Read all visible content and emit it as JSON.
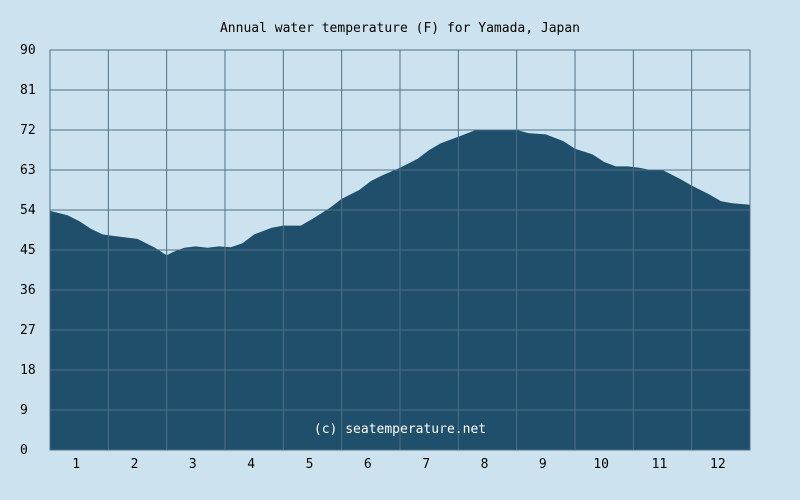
{
  "chart_data": {
    "type": "area",
    "title": "Annual water temperature (F) for Yamada, Japan",
    "xlabel": "",
    "ylabel": "",
    "x_ticks": [
      "1",
      "2",
      "3",
      "4",
      "5",
      "6",
      "7",
      "8",
      "9",
      "10",
      "11",
      "12"
    ],
    "y_ticks": [
      "0",
      "9",
      "18",
      "27",
      "36",
      "45",
      "54",
      "63",
      "72",
      "81",
      "90"
    ],
    "ylim": [
      0,
      90
    ],
    "xlim": [
      0.5,
      12.5
    ],
    "grid": true,
    "watermark": "(c) seatemperature.net",
    "series": [
      {
        "x": [
          0.5,
          0.8,
          1.0,
          1.2,
          1.4,
          1.5,
          1.7,
          2.0,
          2.3,
          2.5,
          2.6,
          2.8,
          3.0,
          3.2,
          3.4,
          3.6,
          3.8,
          4.0,
          4.3,
          4.5,
          4.8,
          5.0,
          5.3,
          5.5,
          5.8,
          6.0,
          6.2,
          6.5,
          6.8,
          7.0,
          7.2,
          7.5,
          7.8,
          8.0,
          8.2,
          8.5,
          8.7,
          9.0,
          9.3,
          9.5,
          9.8,
          10.0,
          10.2,
          10.4,
          10.6,
          10.8,
          11.0,
          11.3,
          11.5,
          11.8,
          12.0,
          12.2,
          12.5
        ],
        "values": [
          53.8,
          52.8,
          51.5,
          49.8,
          48.5,
          48.3,
          48.0,
          47.5,
          45.5,
          43.8,
          44.5,
          45.5,
          45.8,
          45.5,
          45.8,
          45.6,
          46.5,
          48.5,
          50.0,
          50.5,
          50.5,
          52.0,
          54.5,
          56.5,
          58.5,
          60.5,
          61.8,
          63.5,
          65.5,
          67.5,
          69.0,
          70.5,
          72.0,
          72.0,
          72.0,
          72.0,
          71.3,
          71.0,
          69.5,
          67.8,
          66.5,
          64.8,
          63.8,
          63.8,
          63.5,
          63.0,
          63.0,
          61.0,
          59.5,
          57.5,
          56.0,
          55.5,
          55.2
        ],
        "color": "#1f4f6b"
      }
    ],
    "colors": {
      "background": "#cce3ef",
      "plot_background": "#cce3ef",
      "fill": "#1f4f6b",
      "grid": "#4f6f84",
      "watermark": "#ffffff"
    }
  }
}
